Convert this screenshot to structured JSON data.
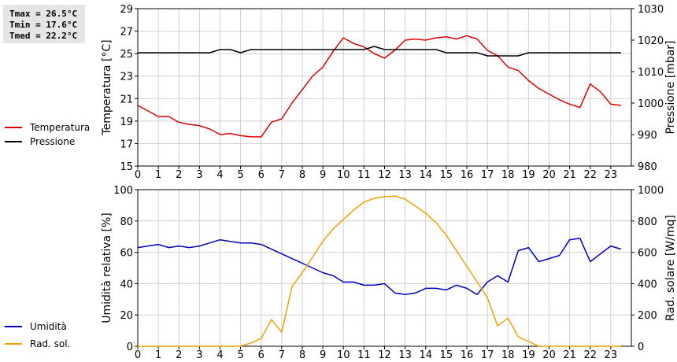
{
  "stats": {
    "tmax": "Tmax = 26.5°C",
    "tmin": "Tmin = 17.6°C",
    "tmed": "Tmed = 22.2°C"
  },
  "chart_data": [
    {
      "type": "line",
      "x_ticks": [
        "0",
        "1",
        "2",
        "3",
        "4",
        "5",
        "6",
        "7",
        "8",
        "9",
        "10",
        "11",
        "12",
        "13",
        "14",
        "15",
        "16",
        "17",
        "18",
        "19",
        "20",
        "21",
        "22",
        "23"
      ],
      "xlim": [
        0,
        24
      ],
      "ylabel": "Temperatura [°C]",
      "ylim": [
        15,
        29
      ],
      "y_ticks": [
        "15",
        "17",
        "19",
        "21",
        "23",
        "25",
        "27",
        "29"
      ],
      "y2label": "Pressione [mbar]",
      "y2lim": [
        980,
        1030
      ],
      "y2_ticks": [
        "980",
        "990",
        "1000",
        "1010",
        "1020",
        "1030"
      ],
      "grid": true,
      "legend_position": "left",
      "series": [
        {
          "name": "Temperatura",
          "color": "#dd0000",
          "axis": "left",
          "x": [
            0,
            0.5,
            1,
            1.5,
            2,
            2.5,
            3,
            3.5,
            4,
            4.5,
            5,
            5.5,
            6,
            6.5,
            7,
            7.5,
            8,
            8.5,
            9,
            9.5,
            10,
            10.5,
            11,
            11.5,
            12,
            12.5,
            13,
            13.5,
            14,
            14.5,
            15,
            15.5,
            16,
            16.5,
            17,
            17.5,
            18,
            18.5,
            19,
            19.5,
            20,
            20.5,
            21,
            21.5,
            22,
            22.5,
            23,
            23.5
          ],
          "values": [
            20.4,
            19.9,
            19.4,
            19.4,
            18.9,
            18.7,
            18.6,
            18.3,
            17.8,
            17.9,
            17.7,
            17.6,
            17.6,
            18.9,
            19.2,
            20.6,
            21.8,
            23.0,
            23.8,
            25.2,
            26.4,
            25.9,
            25.6,
            25.0,
            24.6,
            25.3,
            26.2,
            26.3,
            26.2,
            26.4,
            26.5,
            26.3,
            26.6,
            26.3,
            25.3,
            24.8,
            23.8,
            23.5,
            22.6,
            21.9,
            21.4,
            20.9,
            20.5,
            20.2,
            22.3,
            21.6,
            20.5,
            20.4
          ]
        },
        {
          "name": "Pressione",
          "color": "#000000",
          "axis": "right",
          "x": [
            0,
            0.5,
            1,
            1.5,
            2,
            2.5,
            3,
            3.5,
            4,
            4.5,
            5,
            5.5,
            6,
            6.5,
            7,
            7.5,
            8,
            8.5,
            9,
            9.5,
            10,
            10.5,
            11,
            11.5,
            12,
            12.5,
            13,
            13.5,
            14,
            14.5,
            15,
            15.5,
            16,
            16.5,
            17,
            17.5,
            18,
            18.5,
            19,
            19.5,
            20,
            20.5,
            21,
            21.5,
            22,
            22.5,
            23,
            23.5
          ],
          "values": [
            1016,
            1016,
            1016,
            1016,
            1016,
            1016,
            1016,
            1016,
            1017,
            1017,
            1016,
            1017,
            1017,
            1017,
            1017,
            1017,
            1017,
            1017,
            1017,
            1017,
            1017,
            1017,
            1017,
            1018,
            1017,
            1017,
            1017,
            1017,
            1017,
            1017,
            1016,
            1016,
            1016,
            1016,
            1015,
            1015,
            1015,
            1015,
            1016,
            1016,
            1016,
            1016,
            1016,
            1016,
            1016,
            1016,
            1016,
            1016
          ]
        }
      ]
    },
    {
      "type": "line",
      "x_ticks": [
        "0",
        "1",
        "2",
        "3",
        "4",
        "5",
        "6",
        "7",
        "8",
        "9",
        "10",
        "11",
        "12",
        "13",
        "14",
        "15",
        "16",
        "17",
        "18",
        "19",
        "20",
        "21",
        "22",
        "23"
      ],
      "xlim": [
        0,
        24
      ],
      "ylabel": "Umidità relativa [%]",
      "ylim": [
        0,
        100
      ],
      "y_ticks": [
        "0",
        "20",
        "40",
        "60",
        "80",
        "100"
      ],
      "y2label": "Rad. solare [W/mq]",
      "y2lim": [
        0,
        1000
      ],
      "y2_ticks": [
        "0",
        "200",
        "400",
        "600",
        "800",
        "1000"
      ],
      "grid": true,
      "legend_position": "left",
      "series": [
        {
          "name": "Umidità",
          "color": "#0000bb",
          "axis": "left",
          "x": [
            0,
            0.5,
            1,
            1.5,
            2,
            2.5,
            3,
            3.5,
            4,
            4.5,
            5,
            5.5,
            6,
            6.5,
            7,
            7.5,
            8,
            8.5,
            9,
            9.5,
            10,
            10.5,
            11,
            11.5,
            12,
            12.5,
            13,
            13.5,
            14,
            14.5,
            15,
            15.5,
            16,
            16.5,
            17,
            17.5,
            18,
            18.5,
            19,
            19.5,
            20,
            20.5,
            21,
            21.5,
            22,
            22.5,
            23,
            23.5
          ],
          "values": [
            63,
            64,
            65,
            63,
            64,
            63,
            64,
            66,
            68,
            67,
            66,
            66,
            65,
            62,
            59,
            56,
            53,
            50,
            47,
            45,
            41,
            41,
            39,
            39,
            40,
            34,
            33,
            34,
            37,
            37,
            36,
            39,
            37,
            33,
            41,
            45,
            41,
            61,
            63,
            54,
            56,
            58,
            68,
            69,
            54,
            59,
            64,
            62
          ]
        },
        {
          "name": "Rad. sol.",
          "color": "#f0a000",
          "axis": "right",
          "x": [
            0,
            0.5,
            1,
            1.5,
            2,
            2.5,
            3,
            3.5,
            4,
            4.5,
            5,
            5.5,
            6,
            6.5,
            7,
            7.5,
            8,
            8.5,
            9,
            9.5,
            10,
            10.5,
            11,
            11.5,
            12,
            12.5,
            13,
            13.5,
            14,
            14.5,
            15,
            15.5,
            16,
            16.5,
            17,
            17.5,
            18,
            18.5,
            19,
            19.5,
            20,
            20.5,
            21,
            21.5,
            22,
            22.5,
            23,
            23.5
          ],
          "values": [
            0,
            0,
            0,
            0,
            0,
            0,
            0,
            0,
            0,
            0,
            0,
            20,
            50,
            170,
            90,
            380,
            470,
            570,
            670,
            750,
            810,
            870,
            920,
            945,
            955,
            960,
            940,
            895,
            850,
            790,
            710,
            610,
            510,
            410,
            310,
            130,
            180,
            60,
            30,
            0,
            0,
            0,
            0,
            0,
            0,
            0,
            0,
            0
          ]
        }
      ]
    }
  ]
}
